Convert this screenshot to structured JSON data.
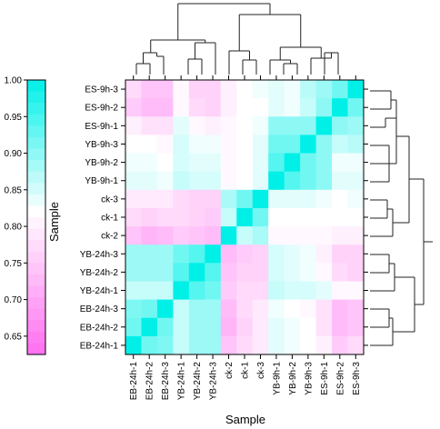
{
  "chart_data": {
    "type": "heatmap",
    "xlabel": "Sample",
    "ylabel": "Sample",
    "x_labels": [
      "EB-24h-1",
      "EB-24h-2",
      "EB-24h-3",
      "YB-24h-1",
      "YB-24h-2",
      "YB-24h-3",
      "ck-2",
      "ck-1",
      "ck-3",
      "YB-9h-1",
      "YB-9h-2",
      "YB-9h-3",
      "ES-9h-1",
      "ES-9h-2",
      "ES-9h-3"
    ],
    "y_labels_top_to_bottom": [
      "ES-9h-3",
      "ES-9h-2",
      "ES-9h-1",
      "YB-9h-3",
      "YB-9h-2",
      "YB-9h-1",
      "ck-3",
      "ck-1",
      "ck-2",
      "YB-24h-3",
      "YB-24h-2",
      "YB-24h-1",
      "EB-24h-3",
      "EB-24h-2",
      "EB-24h-1"
    ],
    "color_scale": {
      "range": [
        0.625,
        1.0
      ],
      "ticks": [
        0.65,
        0.7,
        0.75,
        0.8,
        0.85,
        0.9,
        0.95,
        1.0
      ],
      "low_color": "#ff6ef0",
      "mid_color": "#ffffff",
      "high_color": "#00f0e8"
    },
    "values": [
      [
        0.77,
        0.74,
        0.74,
        0.81,
        0.76,
        0.76,
        0.8,
        0.82,
        0.83,
        0.84,
        0.83,
        0.87,
        0.89,
        0.92,
        1.0
      ],
      [
        0.75,
        0.73,
        0.73,
        0.81,
        0.77,
        0.76,
        0.8,
        0.82,
        0.82,
        0.84,
        0.83,
        0.86,
        0.9,
        1.0,
        0.92
      ],
      [
        0.8,
        0.78,
        0.78,
        0.84,
        0.81,
        0.8,
        0.81,
        0.82,
        0.83,
        0.9,
        0.9,
        0.9,
        1.0,
        0.9,
        0.89
      ],
      [
        0.82,
        0.82,
        0.81,
        0.85,
        0.83,
        0.83,
        0.81,
        0.82,
        0.84,
        0.92,
        0.92,
        1.0,
        0.9,
        0.86,
        0.87
      ],
      [
        0.83,
        0.83,
        0.82,
        0.85,
        0.84,
        0.84,
        0.81,
        0.82,
        0.84,
        0.94,
        1.0,
        0.92,
        0.9,
        0.83,
        0.83
      ],
      [
        0.84,
        0.84,
        0.83,
        0.86,
        0.85,
        0.85,
        0.81,
        0.82,
        0.84,
        1.0,
        0.94,
        0.92,
        0.9,
        0.84,
        0.84
      ],
      [
        0.79,
        0.79,
        0.79,
        0.77,
        0.76,
        0.76,
        0.88,
        0.92,
        1.0,
        0.84,
        0.84,
        0.84,
        0.83,
        0.82,
        0.83
      ],
      [
        0.77,
        0.76,
        0.77,
        0.77,
        0.76,
        0.75,
        0.86,
        1.0,
        0.92,
        0.82,
        0.82,
        0.82,
        0.82,
        0.82,
        0.82
      ],
      [
        0.74,
        0.72,
        0.73,
        0.75,
        0.74,
        0.73,
        1.0,
        0.86,
        0.88,
        0.81,
        0.81,
        0.81,
        0.81,
        0.8,
        0.8
      ],
      [
        0.89,
        0.89,
        0.89,
        0.92,
        0.94,
        1.0,
        0.73,
        0.75,
        0.76,
        0.85,
        0.84,
        0.83,
        0.8,
        0.76,
        0.76
      ],
      [
        0.89,
        0.89,
        0.89,
        0.94,
        1.0,
        0.94,
        0.74,
        0.76,
        0.76,
        0.85,
        0.84,
        0.83,
        0.81,
        0.77,
        0.76
      ],
      [
        0.86,
        0.86,
        0.86,
        1.0,
        0.94,
        0.92,
        0.75,
        0.77,
        0.77,
        0.86,
        0.85,
        0.85,
        0.84,
        0.81,
        0.81
      ],
      [
        0.91,
        0.92,
        1.0,
        0.86,
        0.89,
        0.89,
        0.73,
        0.77,
        0.79,
        0.83,
        0.82,
        0.81,
        0.78,
        0.73,
        0.74
      ],
      [
        0.92,
        1.0,
        0.92,
        0.86,
        0.89,
        0.89,
        0.72,
        0.76,
        0.79,
        0.84,
        0.83,
        0.82,
        0.78,
        0.73,
        0.74
      ],
      [
        1.0,
        0.92,
        0.91,
        0.86,
        0.89,
        0.89,
        0.74,
        0.77,
        0.79,
        0.84,
        0.83,
        0.82,
        0.8,
        0.75,
        0.77
      ]
    ]
  }
}
